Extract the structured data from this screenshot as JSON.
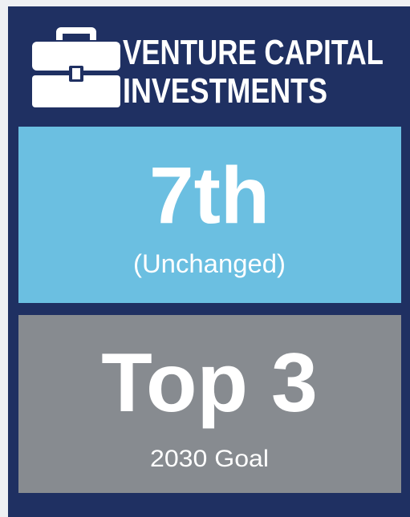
{
  "header": {
    "title_lines": [
      "VENTURE CAPITAL",
      "INVESTMENTS"
    ]
  },
  "boxes": [
    {
      "value": "7th",
      "caption": "(Unchanged)"
    },
    {
      "value": "Top 3",
      "caption": "2030 Goal"
    }
  ]
}
